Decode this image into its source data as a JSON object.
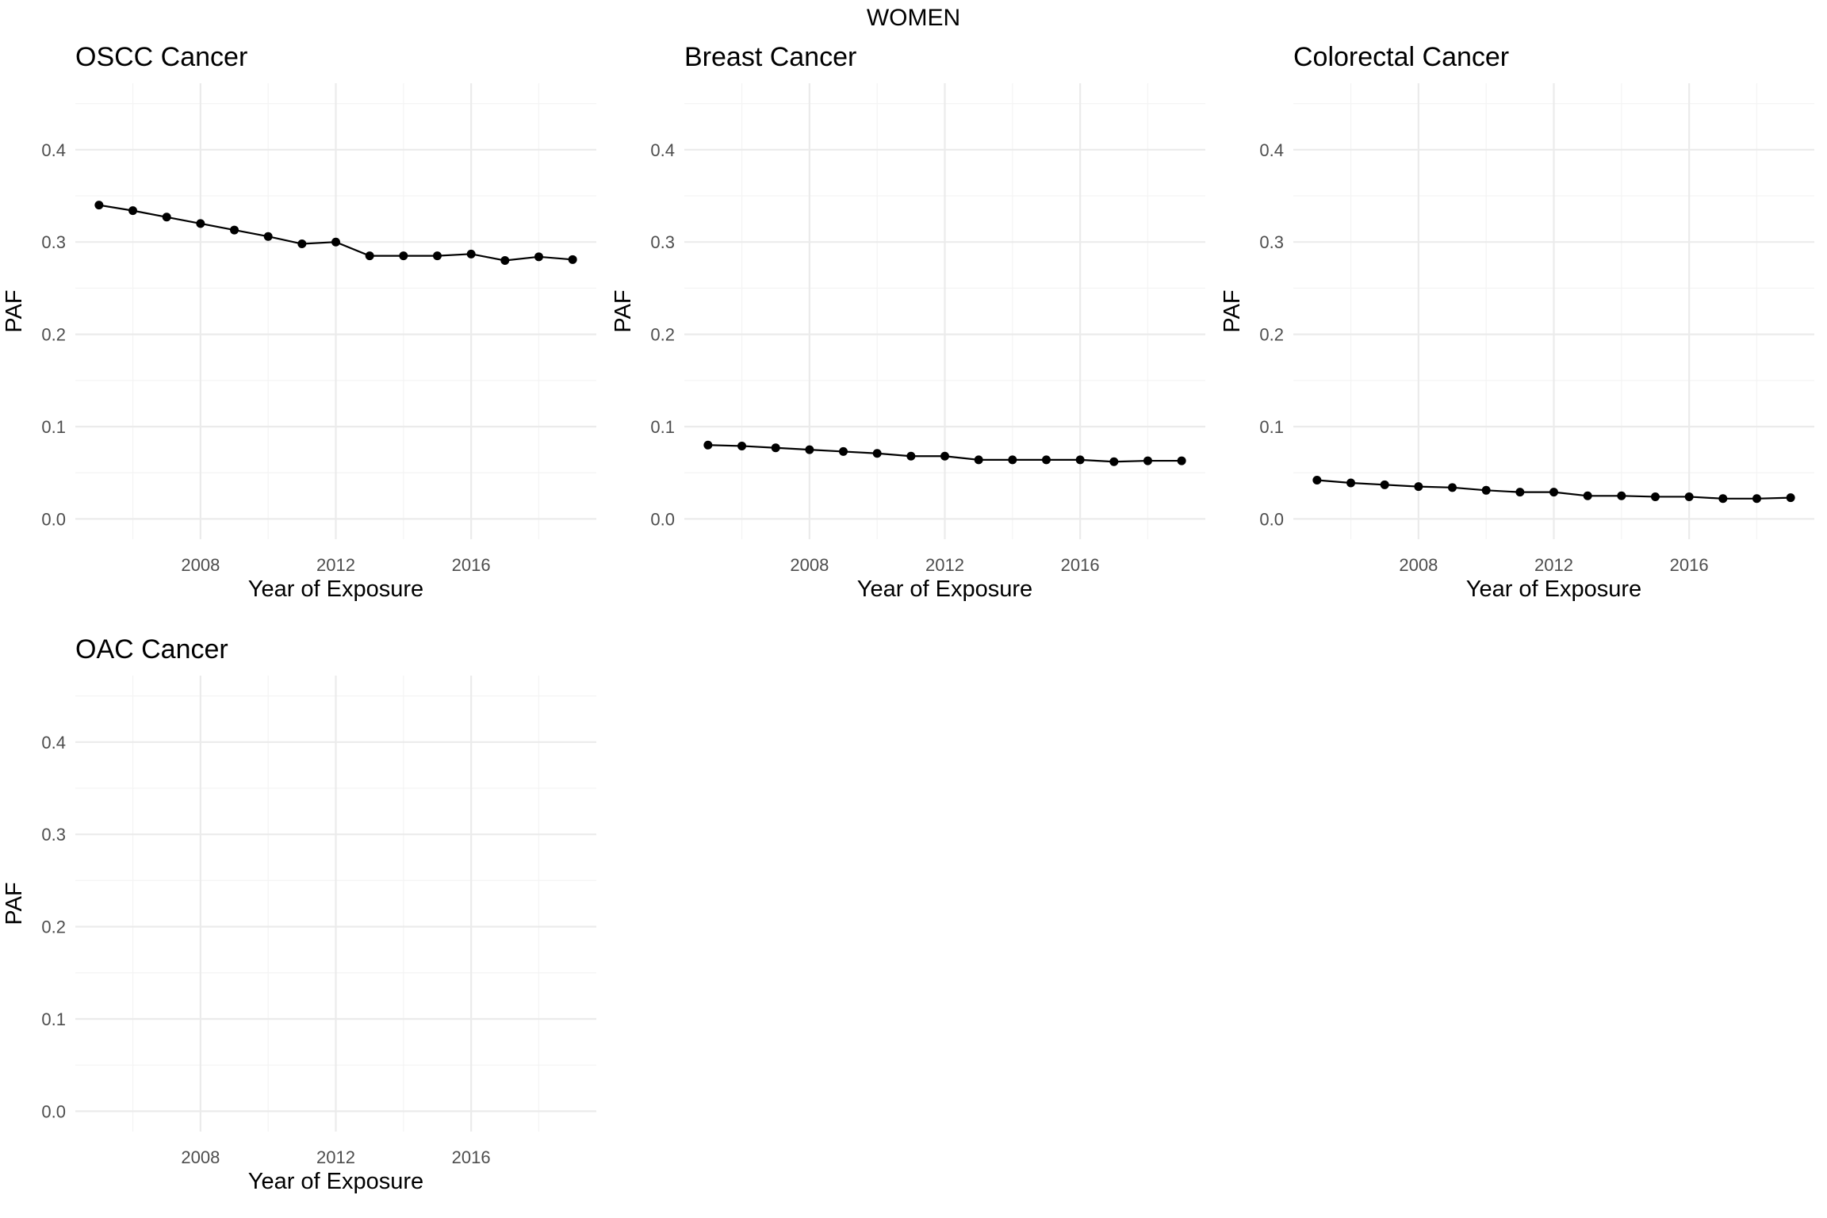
{
  "title": "WOMEN",
  "x_ticks": [
    2008,
    2012,
    2016
  ],
  "y_ticks": [
    "0.0",
    "0.1",
    "0.2",
    "0.3",
    "0.4"
  ],
  "chart_data": [
    {
      "type": "line",
      "title": "OSCC Cancer",
      "xlabel": "Year of Exposure",
      "ylabel": "PAF",
      "xlim": [
        2004.3,
        2019.7
      ],
      "ylim": [
        -0.022,
        0.472
      ],
      "grid": true,
      "x": [
        2005,
        2006,
        2007,
        2008,
        2009,
        2010,
        2011,
        2012,
        2013,
        2014,
        2015,
        2016,
        2017,
        2018,
        2019
      ],
      "series": [
        {
          "values": [
            0.34,
            0.334,
            0.327,
            0.32,
            0.313,
            0.306,
            0.298,
            0.3,
            0.285,
            0.285,
            0.285,
            0.287,
            0.28,
            0.284,
            0.281
          ]
        }
      ]
    },
    {
      "type": "line",
      "title": "Breast Cancer",
      "xlabel": "Year of Exposure",
      "ylabel": "PAF",
      "xlim": [
        2004.3,
        2019.7
      ],
      "ylim": [
        -0.022,
        0.472
      ],
      "grid": true,
      "x": [
        2005,
        2006,
        2007,
        2008,
        2009,
        2010,
        2011,
        2012,
        2013,
        2014,
        2015,
        2016,
        2017,
        2018,
        2019
      ],
      "series": [
        {
          "values": [
            0.08,
            0.079,
            0.077,
            0.075,
            0.073,
            0.071,
            0.068,
            0.068,
            0.064,
            0.064,
            0.064,
            0.064,
            0.062,
            0.063,
            0.063
          ]
        }
      ]
    },
    {
      "type": "line",
      "title": "Colorectal Cancer",
      "xlabel": "Year of Exposure",
      "ylabel": "PAF",
      "xlim": [
        2004.3,
        2019.7
      ],
      "ylim": [
        -0.022,
        0.472
      ],
      "grid": true,
      "x": [
        2005,
        2006,
        2007,
        2008,
        2009,
        2010,
        2011,
        2012,
        2013,
        2014,
        2015,
        2016,
        2017,
        2018,
        2019
      ],
      "series": [
        {
          "values": [
            0.042,
            0.039,
            0.037,
            0.035,
            0.034,
            0.031,
            0.029,
            0.029,
            0.025,
            0.025,
            0.024,
            0.024,
            0.022,
            0.022,
            0.023
          ]
        }
      ]
    },
    {
      "type": "line",
      "title": "OAC Cancer",
      "xlabel": "Year of Exposure",
      "ylabel": "PAF",
      "xlim": [
        2004.3,
        2019.7
      ],
      "ylim": [
        -0.022,
        0.472
      ],
      "grid": true,
      "x": [],
      "series": []
    }
  ]
}
